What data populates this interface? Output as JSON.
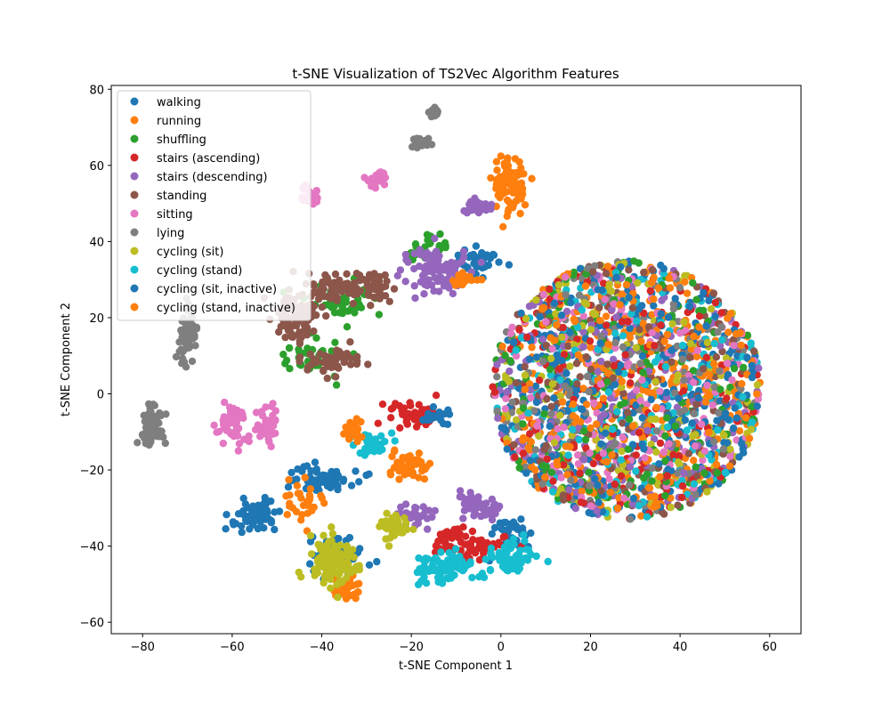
{
  "chart_data": {
    "type": "scatter",
    "title": "t-SNE Visualization of TS2Vec Algorithm Features",
    "xlabel": "t-SNE Component 1",
    "ylabel": "t-SNE Component 2",
    "xlim": [
      -87,
      67
    ],
    "ylim": [
      -63,
      81
    ],
    "xticks": [
      -80,
      -60,
      -40,
      -20,
      0,
      20,
      40,
      60
    ],
    "yticks": [
      -60,
      -40,
      -20,
      0,
      20,
      40,
      60,
      80
    ],
    "grid": false,
    "legend_position": "top-left",
    "series": [
      {
        "name": "walking",
        "color": "#1f77b4",
        "clusters": [
          [
            -5,
            35,
            4,
            3,
            40
          ],
          [
            -40,
            -22,
            7,
            3,
            60
          ],
          [
            -36,
            -42,
            5,
            4,
            55
          ],
          [
            2,
            -37,
            4,
            4,
            40
          ]
        ]
      },
      {
        "name": "running",
        "color": "#ff7f0e",
        "clusters": [
          [
            2,
            55,
            3,
            6,
            90
          ],
          [
            -21,
            -19,
            4,
            3,
            50
          ],
          [
            -34,
            -52,
            3,
            3,
            30
          ],
          [
            -45,
            -28,
            4,
            4,
            30
          ]
        ]
      },
      {
        "name": "shuffling",
        "color": "#2ca02c",
        "clusters": [
          [
            -36,
            25,
            6,
            4,
            50
          ],
          [
            -42,
            10,
            6,
            4,
            40
          ],
          [
            -16,
            38,
            4,
            3,
            30
          ]
        ]
      },
      {
        "name": "stairs (ascending)",
        "color": "#d62728",
        "clusters": [
          [
            -20,
            -5,
            5,
            3,
            50
          ],
          [
            -5,
            -40,
            5,
            4,
            50
          ],
          [
            -12,
            -38,
            3,
            3,
            30
          ]
        ]
      },
      {
        "name": "stairs (descending)",
        "color": "#9467bd",
        "clusters": [
          [
            -15,
            32,
            6,
            5,
            90
          ],
          [
            -5,
            49,
            2,
            2,
            30
          ],
          [
            -5,
            -30,
            5,
            3,
            50
          ],
          [
            -20,
            -32,
            4,
            3,
            40
          ]
        ]
      },
      {
        "name": "standing",
        "color": "#8c564b",
        "clusters": [
          [
            -46,
            20,
            4,
            6,
            90
          ],
          [
            -38,
            28,
            5,
            3,
            60
          ],
          [
            -28,
            28,
            4,
            3,
            50
          ],
          [
            -37,
            8,
            6,
            3,
            50
          ]
        ]
      },
      {
        "name": "sitting",
        "color": "#e377c2",
        "clusters": [
          [
            -60,
            -8,
            3,
            4,
            50
          ],
          [
            -52,
            -8,
            2,
            4,
            40
          ],
          [
            -43,
            52,
            2,
            2,
            30
          ],
          [
            -28,
            57,
            2,
            2,
            25
          ]
        ]
      },
      {
        "name": "lying",
        "color": "#7f7f7f",
        "clusters": [
          [
            -78,
            -8,
            2,
            4,
            90
          ],
          [
            -70,
            15,
            2,
            5,
            70
          ],
          [
            -18,
            66,
            2,
            1,
            20
          ],
          [
            -15,
            74,
            1,
            1,
            15
          ]
        ]
      },
      {
        "name": "cycling (sit)",
        "color": "#bcbd22",
        "clusters": [
          [
            -38,
            -44,
            4,
            5,
            130
          ],
          [
            -24,
            -35,
            3,
            3,
            40
          ]
        ]
      },
      {
        "name": "cycling (stand)",
        "color": "#17becf",
        "clusters": [
          [
            -12,
            -46,
            6,
            3,
            90
          ],
          [
            2,
            -43,
            4,
            3,
            60
          ],
          [
            -28,
            -13,
            4,
            2,
            30
          ]
        ]
      },
      {
        "name": "cycling (sit, inactive)",
        "color": "#1f77b4",
        "clusters": [
          [
            -55,
            -32,
            5,
            3,
            60
          ],
          [
            -15,
            -6,
            3,
            2,
            20
          ]
        ]
      },
      {
        "name": "cycling (stand, inactive)",
        "color": "#ff7f0e",
        "clusters": [
          [
            -8,
            30,
            3,
            2,
            20
          ],
          [
            -33,
            -10,
            3,
            2,
            30
          ]
        ]
      }
    ],
    "disc": {
      "center": [
        28,
        1
      ],
      "radii": [
        30,
        34
      ],
      "count_per_series": 190
    }
  }
}
